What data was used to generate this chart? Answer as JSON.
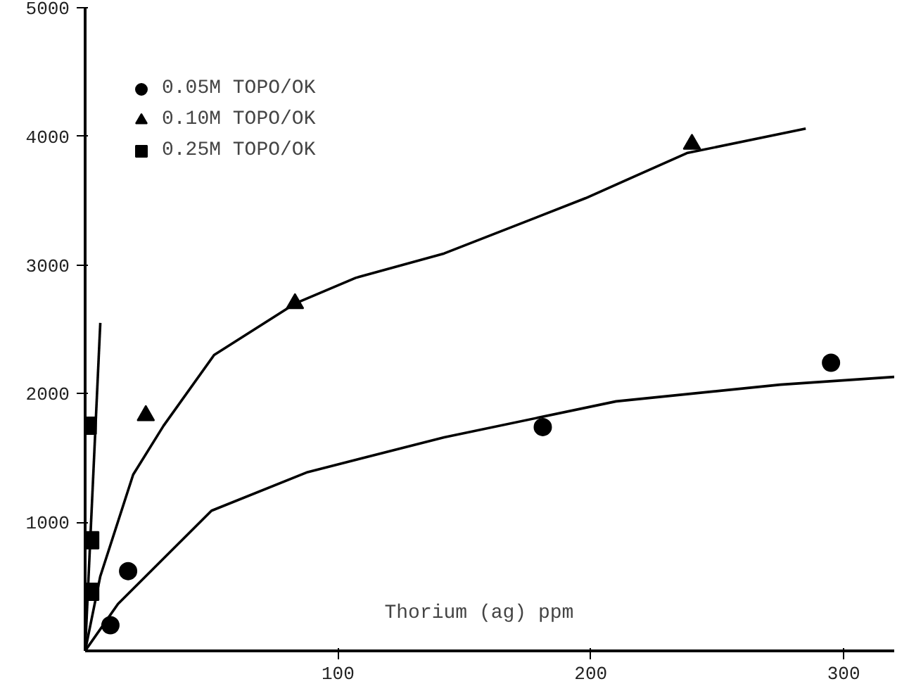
{
  "chart_data": {
    "type": "scatter",
    "xlabel": "Thorium (ag) ppm",
    "xlim": [
      0,
      320
    ],
    "ylim": [
      0,
      5000
    ],
    "xticks": [
      100,
      200,
      300
    ],
    "yticks": [
      1000,
      2000,
      3000,
      4000,
      5000
    ],
    "grid": false,
    "legend": "top left",
    "series": [
      {
        "name": "0.05M TOPO/OK",
        "color": "#000000",
        "marker": "circle",
        "x": [
          10,
          17,
          181,
          295
        ],
        "values": [
          200,
          620,
          1740,
          2240
        ]
      },
      {
        "name": "0.10M TOPO/OK",
        "color": "#000000",
        "marker": "triangle",
        "x": [
          24,
          83,
          240
        ],
        "values": [
          1830,
          2700,
          3940
        ]
      },
      {
        "name": "0.25M TOPO/OK",
        "color": "#000000",
        "marker": "square",
        "x": [
          1,
          2,
          2
        ],
        "values": [
          1750,
          860,
          460
        ]
      },
      {
        "type": "line",
        "color": "#000000",
        "x": [
          0,
          13,
          50,
          88,
          142,
          210,
          275,
          320
        ],
        "values": [
          0,
          365,
          1090,
          1390,
          1660,
          1940,
          2070,
          2130
        ]
      },
      {
        "type": "line",
        "color": "#000000",
        "x": [
          0,
          6,
          19,
          31,
          51,
          83,
          107,
          142,
          198,
          238,
          285
        ],
        "values": [
          0,
          580,
          1370,
          1750,
          2300,
          2700,
          2900,
          3090,
          3520,
          3870,
          4060
        ]
      },
      {
        "type": "line",
        "color": "#000000",
        "x": [
          0,
          6
        ],
        "values": [
          0,
          2550
        ]
      }
    ]
  }
}
